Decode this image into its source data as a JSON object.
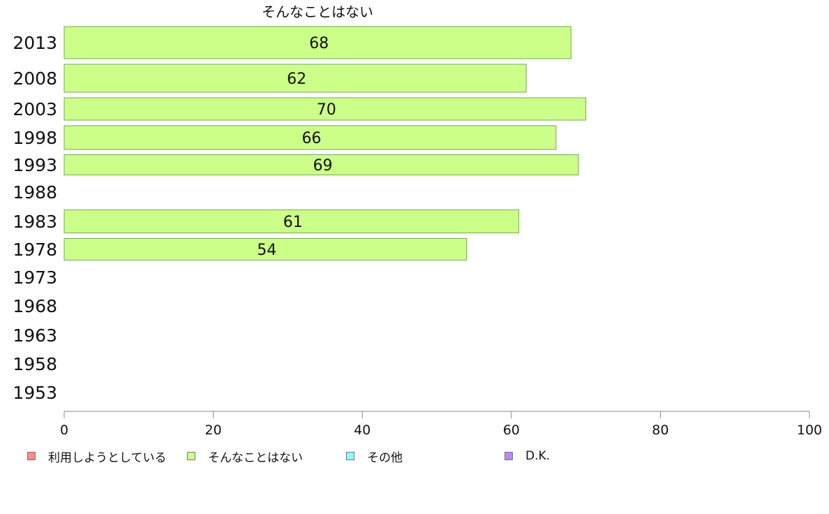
{
  "chart_data": {
    "type": "bar",
    "title": "そんなことはない",
    "orientation": "horizontal",
    "categories": [
      "2013",
      "2008",
      "2003",
      "1998",
      "1993",
      "1988",
      "1983",
      "1978",
      "1973",
      "1968",
      "1963",
      "1958",
      "1953"
    ],
    "series": [
      {
        "name": "そんなことはない",
        "values": [
          68,
          62,
          70,
          66,
          69,
          null,
          61,
          54,
          null,
          null,
          null,
          null,
          null
        ],
        "color": "#ccff88"
      }
    ],
    "xlim": [
      0,
      100
    ],
    "xticks": [
      "0",
      "20",
      "40",
      "60",
      "80",
      "100"
    ],
    "grid": false,
    "legend": {
      "placement": "bottom-left",
      "entries": [
        {
          "label": "利用しようとしている",
          "color": "#ff8888"
        },
        {
          "label": "そんなことはない",
          "color": "#ccff88"
        },
        {
          "label": "その他",
          "color": "#88ffff"
        },
        {
          "label": "D.K.",
          "color": "#bb88ff"
        }
      ]
    }
  }
}
